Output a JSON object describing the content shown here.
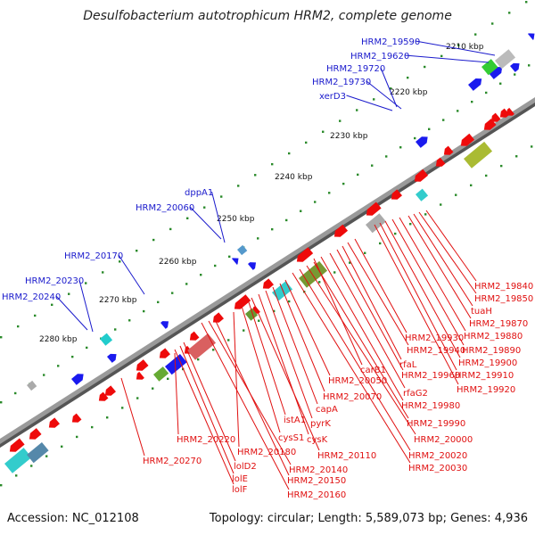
{
  "title": "Desulfobacterium autotrophicum HRM2, complete genome",
  "footer": {
    "accession": "Accession: NC_012108",
    "topology": "Topology: circular; Length: 5,589,073 bp; Genes: 4,936"
  },
  "colors": {
    "forward_label": "#1a1acc",
    "reverse_label": "#e01010",
    "forward_gene": "#1a1aee",
    "reverse_gene": "#ee0a0a",
    "backbone": "#9a9a9a",
    "tick": "#2a8a2a"
  },
  "kbp_ticks": [
    "2210 kbp",
    "2220 kbp",
    "2230 kbp",
    "2240 kbp",
    "2250 kbp",
    "2260 kbp",
    "2270 kbp",
    "2280 kbp"
  ],
  "forward_labels": [
    "HRM2_19590",
    "HRM2_19620",
    "HRM2_19720",
    "HRM2_19730",
    "xerD3",
    "dppA1",
    "HRM2_20060",
    "HRM2_20170",
    "HRM2_20230",
    "HRM2_20240"
  ],
  "reverse_labels": [
    "HRM2_19840",
    "HRM2_19850",
    "tuaH",
    "HRM2_19870",
    "HRM2_19880",
    "HRM2_19890",
    "HRM2_19900",
    "HRM2_19910",
    "HRM2_19920",
    "HRM2_19930",
    "HRM2_19940",
    "rfaL",
    "HRM2_19960",
    "carB1",
    "rfaG2",
    "HRM2_19980",
    "HRM2_20050",
    "HRM2_19990",
    "HRM2_20070",
    "HRM2_20000",
    "capA",
    "HRM2_20020",
    "pyrK",
    "HRM2_20030",
    "istA1",
    "cysK",
    "cysS1",
    "HRM2_20110",
    "HRM2_20220",
    "HRM2_20180",
    "HRM2_20140",
    "HRM2_20270",
    "lolD2",
    "HRM2_20150",
    "lolE",
    "lolF",
    "HRM2_20160"
  ]
}
